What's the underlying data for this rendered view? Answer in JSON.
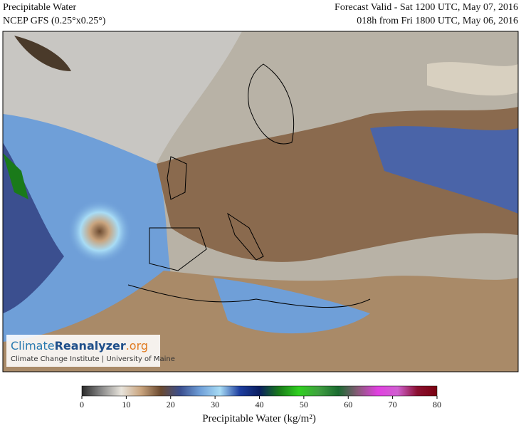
{
  "header": {
    "title": "Precipitable Water",
    "model": "NCEP GFS (0.25°x0.25°)",
    "valid": "Forecast Valid - Sat 1200 UTC, May 07, 2016",
    "lead": "018h from Fri 1800 UTC, May 06, 2016"
  },
  "logo": {
    "name_part1": "Climate",
    "name_part2": "Reanalyzer",
    "name_part3": ".org",
    "credit": "Climate Change Institute | University of Maine"
  },
  "colorbar": {
    "range": [
      0,
      80
    ],
    "ticks": [
      0,
      10,
      20,
      30,
      40,
      50,
      60,
      70,
      80
    ],
    "label": "Precipitable Water (kg/m²)",
    "colors": [
      "#2a2a2a",
      "#8a8a8a",
      "#e8e4dc",
      "#c9a47e",
      "#6b4a30",
      "#3b4f8f",
      "#6f9fd8",
      "#a8dcf5",
      "#1e3ea0",
      "#0a1e60",
      "#1a7a1a",
      "#30d020",
      "#40a040",
      "#1a6a30",
      "#8a5a7a",
      "#e040e0",
      "#d060d0",
      "#8a1030",
      "#7a0010"
    ]
  }
}
